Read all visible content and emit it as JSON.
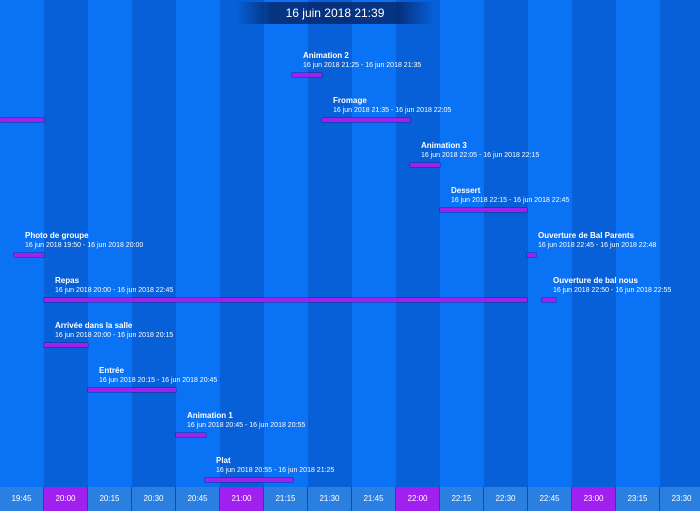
{
  "header": {
    "datetime": "16 juin 2018 21:39"
  },
  "events": [
    {
      "title": "Animation 2",
      "range": "16 jun 2018 21:25 - 16 jun 2018 21:35"
    },
    {
      "title": "Fromage",
      "range": "16 jun 2018 21:35 - 16 jun 2018 22:05"
    },
    {
      "title": "Animation 3",
      "range": "16 jun 2018 22:05 - 16 jun 2018 22:15"
    },
    {
      "title": "Dessert",
      "range": "16 jun 2018 22:15 - 16 jun 2018 22:45"
    },
    {
      "title": "Photo de groupe",
      "range": "16 jun 2018 19:50 - 16 jun 2018 20:00"
    },
    {
      "title": "Ouverture de Bal Parents",
      "range": "16 jun 2018 22:45 - 16 jun 2018 22:48"
    },
    {
      "title": "Repas",
      "range": "16 jun 2018 20:00 - 16 jun 2018 22:45"
    },
    {
      "title": "Ouverture de bal nous",
      "range": "16 jun 2018 22:50 - 16 jun 2018 22:55"
    },
    {
      "title": "Arrivée dans la salle",
      "range": "16 jun 2018 20:00 - 16 jun 2018 20:15"
    },
    {
      "title": "Entrée",
      "range": "16 jun 2018 20:15 - 16 jun 2018 20:45"
    },
    {
      "title": "Animation 1",
      "range": "16 jun 2018 20:45 - 16 jun 2018 20:55"
    },
    {
      "title": "Plat",
      "range": "16 jun 2018 20:55 - 16 jun 2018 21:25"
    }
  ],
  "timeline": {
    "ticks": [
      "19:45",
      "20:00",
      "20:15",
      "20:30",
      "20:45",
      "21:00",
      "21:15",
      "21:30",
      "21:45",
      "22:00",
      "22:15",
      "22:30",
      "22:45",
      "23:00",
      "23:15",
      "23:30"
    ],
    "hour_ticks": [
      "20:00",
      "21:00",
      "22:00",
      "23:00"
    ]
  },
  "colors": {
    "background": "#0a6ff0",
    "event_bar": "#a020f0",
    "hour_tick": "#a020f0"
  }
}
